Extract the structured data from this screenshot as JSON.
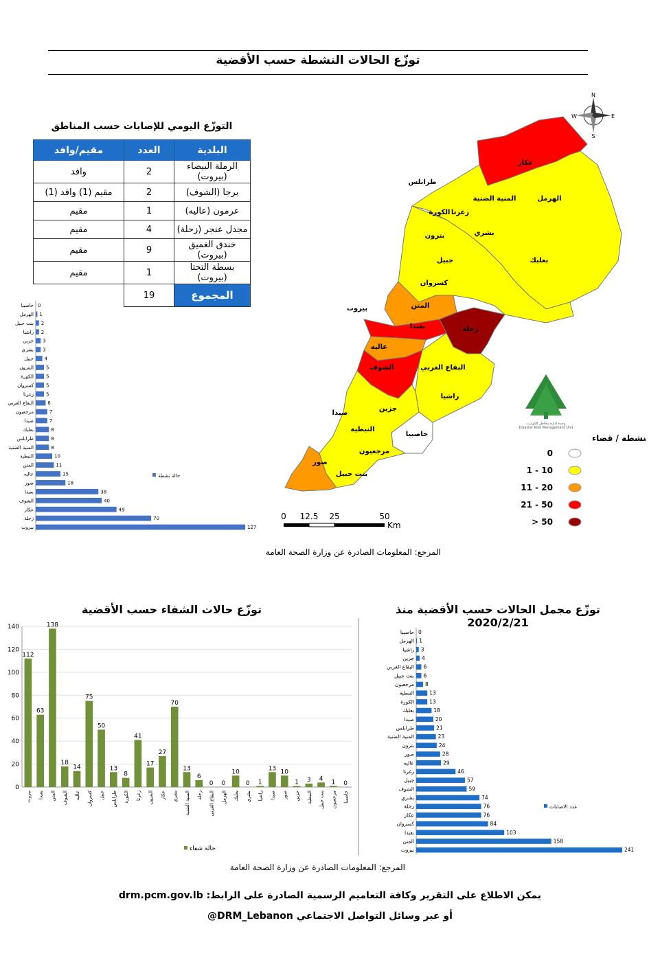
{
  "header": {
    "title": "توزّع الحالات النشطة حسب الأقضية"
  },
  "daily_table": {
    "title": "التوزّع اليومي للإصابات حسب المناطق",
    "headers": [
      "البلدية",
      "العدد",
      "مقيم/وافد"
    ],
    "rows": [
      {
        "municipality": "الرملة البيضاء (بيروت)",
        "count": "2",
        "status": "وافد"
      },
      {
        "municipality": "برجا (الشوف)",
        "count": "2",
        "status": "مقيم (1) وافد (1)"
      },
      {
        "municipality": "عرمون (عاليه)",
        "count": "1",
        "status": "مقيم"
      },
      {
        "municipality": "مجدل عنجر (زحلة)",
        "count": "4",
        "status": "مقيم"
      },
      {
        "municipality": "خندق الغميق (بيروت)",
        "count": "9",
        "status": "مقيم"
      },
      {
        "municipality": "بسطة التحتا (بيروت)",
        "count": "1",
        "status": "مقيم"
      }
    ],
    "total_label": "المجموع",
    "total": "19"
  },
  "map": {
    "district_labels": [
      "عكار",
      "طرابلس",
      "المنية الضنية",
      "الهرمل",
      "زغرتا",
      "الكورة",
      "بشري",
      "بترون",
      "جبيل",
      "بعلبك",
      "كسروان",
      "المتن",
      "بيروت",
      "بعبدا",
      "زحلة",
      "عاليه",
      "الشوف",
      "البقاع الغربي",
      "راشيا",
      "جزين",
      "صيدا",
      "النبطية",
      "حاصبيا",
      "مرجعيون",
      "صور",
      "بنت جبيل"
    ],
    "compass": [
      "N",
      "E",
      "S",
      "W"
    ],
    "logo_text": "وحدة ادارة مخاطر الكوارث",
    "logo_text_en": "Disaster Risk Management Unit",
    "legend_title": "الحالات النشطة / قضاء",
    "legend": [
      {
        "label": "0",
        "color": "#ffffff"
      },
      {
        "label": "1 - 10",
        "color": "#ffff00"
      },
      {
        "label": "11 - 20",
        "color": "#ff9900"
      },
      {
        "label": "21 - 50",
        "color": "#ff0000"
      },
      {
        "label": "> 50",
        "color": "#990000"
      }
    ],
    "scale_ticks": [
      "0",
      "12.5",
      "25",
      "50"
    ],
    "scale_unit": "Km"
  },
  "source_1": "المرجع: المعلومات الصادرة عن وزارة الصحة العامة",
  "source_2": "المرجع: المعلومات الصادرة عن وزارة الصحة العامة",
  "titles": {
    "recovered": "توزّع حالات الشفاء حسب الأقضية",
    "cumulative": "توزّع مجمل الحالات حسب الأقضية منذ 2020/2/21"
  },
  "footer": {
    "line1": "يمكن الاطلاع على التقرير وكافة التعاميم الرسمية الصادرة على الرابط: drm.pcm.gov.lb",
    "line2": "أو عبر وسائل التواصل الاجتماعي DRM_Lebanon@"
  },
  "colors": {
    "blue": "#4472c4",
    "green": "#70903a",
    "table_header": "#1f6fc8"
  },
  "chart_data": [
    {
      "type": "bar",
      "orientation": "horizontal",
      "categories": [
        "حاصبيا",
        "الهرمل",
        "بنت جبيل",
        "راشيا",
        "جزين",
        "بشري",
        "جبيل",
        "البترون",
        "الكورة",
        "كسروان",
        "زغرتا",
        "البقاع الغربي",
        "مرجعيون",
        "صيدا",
        "بعلبك",
        "طرابلس",
        "المنية الضنية",
        "النبطية",
        "المتن",
        "عاليه",
        "صور",
        "بعبدا",
        "الشوف",
        "عكار",
        "زحلة",
        "بيروت"
      ],
      "values": [
        0,
        1,
        2,
        2,
        3,
        3,
        4,
        5,
        5,
        5,
        5,
        6,
        7,
        7,
        8,
        8,
        8,
        10,
        11,
        15,
        18,
        38,
        40,
        49,
        70,
        127
      ],
      "series": [
        {
          "name": "حالة نشطة"
        }
      ],
      "legend": "right",
      "color": "#4472c4"
    },
    {
      "type": "bar",
      "orientation": "vertical",
      "categories": [
        "بيروت",
        "بعبدا",
        "المتن",
        "الشوف",
        "عاليه",
        "كسروان",
        "جبيل",
        "طرابلس",
        "الكورة",
        "زغرتا",
        "البترون",
        "عكار",
        "بشري",
        "المنية الضنية",
        "زحلة",
        "البقاع الغربي",
        "الهرمل",
        "بعلبك",
        "بشري ",
        "راشيا",
        "صيدا",
        "صور",
        "جزين",
        "النبطية",
        "بنت جبيل",
        "مرجعيون",
        "حاصبيا"
      ],
      "values": [
        112,
        63,
        138,
        18,
        14,
        75,
        50,
        13,
        8,
        41,
        17,
        27,
        70,
        13,
        6,
        0,
        0,
        10,
        0,
        1,
        13,
        10,
        1,
        3,
        4,
        1,
        0
      ],
      "yticks": [
        "0",
        "20",
        "40",
        "60",
        "80",
        "100",
        "120",
        "140"
      ],
      "ylim": [
        0,
        140
      ],
      "series": [
        {
          "name": "حالة شفاء"
        }
      ],
      "legend": "bottom",
      "color": "#70903a"
    },
    {
      "type": "bar",
      "orientation": "horizontal",
      "categories": [
        "حاصبيا",
        "الهرمل",
        "راشيا",
        "جزين",
        "البقاع الغربي",
        "بنت جبيل",
        "مرجعيون",
        "النبطية",
        "الكورة",
        "بعلبك",
        "صيدا",
        "طرابلس",
        "المنية الضنية",
        "بترون",
        "صور",
        "عاليه",
        "زغرتا",
        "جبيل",
        "الشوف",
        "بشري",
        "زحلة",
        "عكار",
        "كسروان",
        "بعبدا",
        "المتن",
        "بيروت"
      ],
      "values": [
        0,
        1,
        3,
        4,
        6,
        6,
        8,
        13,
        13,
        18,
        20,
        21,
        23,
        24,
        28,
        29,
        46,
        57,
        59,
        74,
        76,
        76,
        84,
        103,
        158,
        241
      ],
      "series": [
        {
          "name": "عدد الاصابات"
        }
      ],
      "legend": "right",
      "color": "#1f6fc8"
    }
  ]
}
